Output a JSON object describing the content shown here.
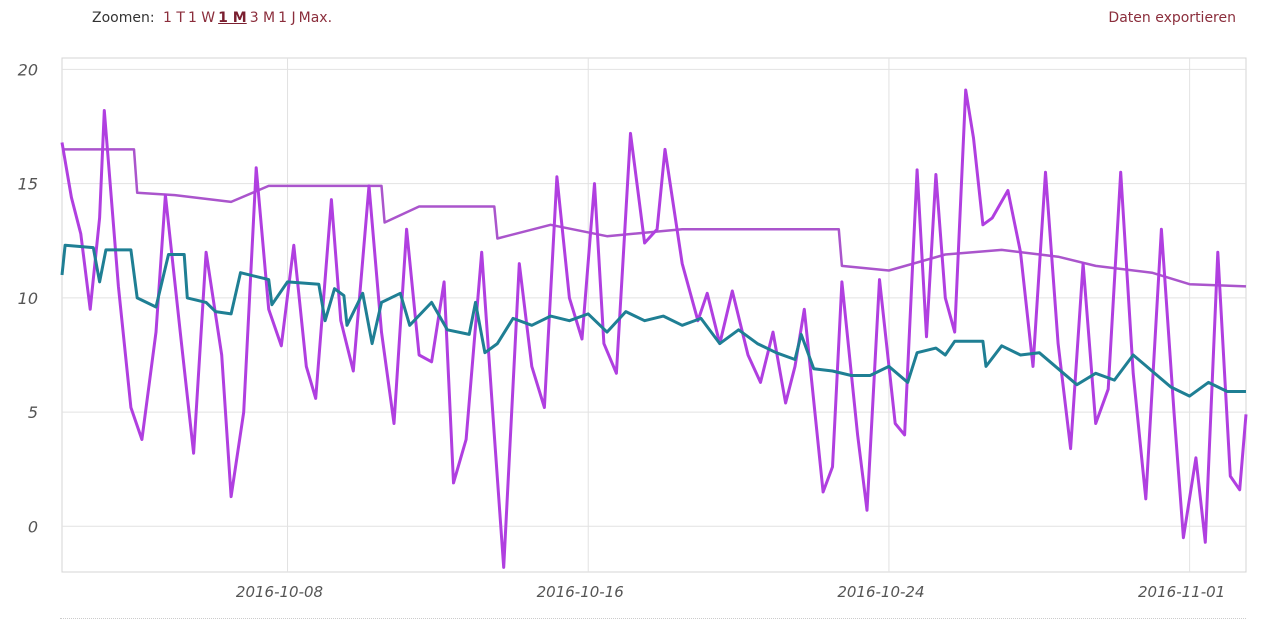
{
  "toolbar": {
    "zoom_label": "Zoomen:",
    "zoom_options": [
      {
        "label": "1 T",
        "active": false
      },
      {
        "label": "1 W",
        "active": false
      },
      {
        "label": "1 M",
        "active": true
      },
      {
        "label": "3 M",
        "active": false
      },
      {
        "label": "1 J",
        "active": false
      },
      {
        "label": "Max.",
        "active": false
      }
    ],
    "export_label": "Daten exportieren"
  },
  "chart_data": {
    "type": "line",
    "ylim": [
      -2,
      20.5
    ],
    "yticks": [
      0,
      5,
      10,
      15,
      20
    ],
    "xlim": [
      "2016-10-02",
      "2016-11-02T12:00"
    ],
    "xticks": [
      "2016-10-08",
      "2016-10-16",
      "2016-10-24",
      "2016-11-01"
    ],
    "grid": true,
    "colors": {
      "series1": "#b03fe0",
      "series2": "#aa55cc",
      "series3": "#1f7f94"
    },
    "series": [
      {
        "points": [
          [
            "2016-10-02T00:00",
            16.8
          ],
          [
            "2016-10-02T06:00",
            14.4
          ],
          [
            "2016-10-02T12:00",
            12.8
          ],
          [
            "2016-10-02T18:00",
            9.5
          ],
          [
            "2016-10-03T00:00",
            13.5
          ],
          [
            "2016-10-03T03:00",
            18.2
          ],
          [
            "2016-10-03T12:00",
            10.5
          ],
          [
            "2016-10-03T20:00",
            5.2
          ],
          [
            "2016-10-04T03:00",
            3.8
          ],
          [
            "2016-10-04T12:00",
            8.5
          ],
          [
            "2016-10-04T18:00",
            14.5
          ],
          [
            "2016-10-05T04:00",
            8.2
          ],
          [
            "2016-10-05T12:00",
            3.2
          ],
          [
            "2016-10-05T20:00",
            12.0
          ],
          [
            "2016-10-06T06:00",
            7.5
          ],
          [
            "2016-10-06T12:00",
            1.3
          ],
          [
            "2016-10-06T20:00",
            5.0
          ],
          [
            "2016-10-07T04:00",
            15.7
          ],
          [
            "2016-10-07T12:00",
            9.5
          ],
          [
            "2016-10-07T20:00",
            7.9
          ],
          [
            "2016-10-08T04:00",
            12.3
          ],
          [
            "2016-10-08T12:00",
            7.0
          ],
          [
            "2016-10-08T18:00",
            5.6
          ],
          [
            "2016-10-09T04:00",
            14.3
          ],
          [
            "2016-10-09T10:00",
            9.0
          ],
          [
            "2016-10-09T18:00",
            6.8
          ],
          [
            "2016-10-10T04:00",
            14.9
          ],
          [
            "2016-10-10T12:00",
            8.5
          ],
          [
            "2016-10-10T20:00",
            4.5
          ],
          [
            "2016-10-11T04:00",
            13.0
          ],
          [
            "2016-10-11T12:00",
            7.5
          ],
          [
            "2016-10-11T20:00",
            7.2
          ],
          [
            "2016-10-12T04:00",
            10.7
          ],
          [
            "2016-10-12T10:00",
            1.9
          ],
          [
            "2016-10-12T18:00",
            3.8
          ],
          [
            "2016-10-13T04:00",
            12.0
          ],
          [
            "2016-10-13T12:00",
            4.0
          ],
          [
            "2016-10-13T18:00",
            -1.8
          ],
          [
            "2016-10-14T04:00",
            11.5
          ],
          [
            "2016-10-14T12:00",
            7.0
          ],
          [
            "2016-10-14T20:00",
            5.2
          ],
          [
            "2016-10-15T04:00",
            15.3
          ],
          [
            "2016-10-15T12:00",
            10.0
          ],
          [
            "2016-10-15T20:00",
            8.2
          ],
          [
            "2016-10-16T04:00",
            15.0
          ],
          [
            "2016-10-16T10:00",
            8.0
          ],
          [
            "2016-10-16T18:00",
            6.7
          ],
          [
            "2016-10-17T03:00",
            17.2
          ],
          [
            "2016-10-17T12:00",
            12.4
          ],
          [
            "2016-10-17T20:00",
            13.0
          ],
          [
            "2016-10-18T01:00",
            16.5
          ],
          [
            "2016-10-18T12:00",
            11.5
          ],
          [
            "2016-10-18T22:00",
            9.0
          ],
          [
            "2016-10-19T04:00",
            10.2
          ],
          [
            "2016-10-19T12:00",
            8.0
          ],
          [
            "2016-10-19T20:00",
            10.3
          ],
          [
            "2016-10-20T06:00",
            7.5
          ],
          [
            "2016-10-20T14:00",
            6.3
          ],
          [
            "2016-10-20T22:00",
            8.5
          ],
          [
            "2016-10-21T06:00",
            5.4
          ],
          [
            "2016-10-21T12:00",
            7.0
          ],
          [
            "2016-10-21T18:00",
            9.5
          ],
          [
            "2016-10-22T06:00",
            1.5
          ],
          [
            "2016-10-22T12:00",
            2.6
          ],
          [
            "2016-10-22T18:00",
            10.7
          ],
          [
            "2016-10-23T04:00",
            4.0
          ],
          [
            "2016-10-23T10:00",
            0.7
          ],
          [
            "2016-10-23T18:00",
            10.8
          ],
          [
            "2016-10-24T04:00",
            4.5
          ],
          [
            "2016-10-24T10:00",
            4.0
          ],
          [
            "2016-10-24T18:00",
            15.6
          ],
          [
            "2016-10-25T00:00",
            8.3
          ],
          [
            "2016-10-25T06:00",
            15.4
          ],
          [
            "2016-10-25T12:00",
            10.0
          ],
          [
            "2016-10-25T18:00",
            8.5
          ],
          [
            "2016-10-26T01:00",
            19.1
          ],
          [
            "2016-10-26T06:00",
            17.0
          ],
          [
            "2016-10-26T12:00",
            13.2
          ],
          [
            "2016-10-26T18:00",
            13.5
          ],
          [
            "2016-10-27T04:00",
            14.7
          ],
          [
            "2016-10-27T12:00",
            12.0
          ],
          [
            "2016-10-27T20:00",
            7.0
          ],
          [
            "2016-10-28T04:00",
            15.5
          ],
          [
            "2016-10-28T12:00",
            8.0
          ],
          [
            "2016-10-28T20:00",
            3.4
          ],
          [
            "2016-10-29T04:00",
            11.5
          ],
          [
            "2016-10-29T12:00",
            4.5
          ],
          [
            "2016-10-29T20:00",
            6.0
          ],
          [
            "2016-10-30T04:00",
            15.5
          ],
          [
            "2016-10-30T12:00",
            6.7
          ],
          [
            "2016-10-30T20:00",
            1.2
          ],
          [
            "2016-10-31T06:00",
            13.0
          ],
          [
            "2016-10-31T14:00",
            5.0
          ],
          [
            "2016-10-31T20:00",
            -0.5
          ],
          [
            "2016-11-01T04:00",
            3.0
          ],
          [
            "2016-11-01T10:00",
            -0.7
          ],
          [
            "2016-11-01T18:00",
            12.0
          ],
          [
            "2016-11-02T02:00",
            2.2
          ],
          [
            "2016-11-02T08:00",
            1.6
          ],
          [
            "2016-11-02T12:00",
            4.9
          ]
        ]
      },
      {
        "points": [
          [
            "2016-10-02T00:00",
            16.5
          ],
          [
            "2016-10-03T22:00",
            16.5
          ],
          [
            "2016-10-04T00:00",
            14.6
          ],
          [
            "2016-10-05T00:00",
            14.5
          ],
          [
            "2016-10-06T12:00",
            14.2
          ],
          [
            "2016-10-07T12:00",
            14.9
          ],
          [
            "2016-10-09T12:00",
            14.9
          ],
          [
            "2016-10-10T12:00",
            14.9
          ],
          [
            "2016-10-10T14:00",
            13.3
          ],
          [
            "2016-10-11T12:00",
            14.0
          ],
          [
            "2016-10-13T12:00",
            14.0
          ],
          [
            "2016-10-13T14:00",
            12.6
          ],
          [
            "2016-10-15T00:00",
            13.2
          ],
          [
            "2016-10-16T12:00",
            12.7
          ],
          [
            "2016-10-18T12:00",
            13.0
          ],
          [
            "2016-10-20T00:00",
            13.0
          ],
          [
            "2016-10-21T12:00",
            13.0
          ],
          [
            "2016-10-22T16:00",
            13.0
          ],
          [
            "2016-10-22T18:00",
            11.4
          ],
          [
            "2016-10-24T00:00",
            11.2
          ],
          [
            "2016-10-25T12:00",
            11.9
          ],
          [
            "2016-10-27T00:00",
            12.1
          ],
          [
            "2016-10-28T12:00",
            11.8
          ],
          [
            "2016-10-29T12:00",
            11.4
          ],
          [
            "2016-10-31T00:00",
            11.1
          ],
          [
            "2016-11-01T00:00",
            10.6
          ],
          [
            "2016-11-02T12:00",
            10.5
          ]
        ]
      },
      {
        "points": [
          [
            "2016-10-02T00:00",
            11.0
          ],
          [
            "2016-10-02T02:00",
            12.3
          ],
          [
            "2016-10-02T20:00",
            12.2
          ],
          [
            "2016-10-03T00:00",
            10.7
          ],
          [
            "2016-10-03T04:00",
            12.1
          ],
          [
            "2016-10-03T20:00",
            12.1
          ],
          [
            "2016-10-04T00:00",
            10.0
          ],
          [
            "2016-10-04T12:00",
            9.6
          ],
          [
            "2016-10-04T20:00",
            11.9
          ],
          [
            "2016-10-05T06:00",
            11.9
          ],
          [
            "2016-10-05T08:00",
            10.0
          ],
          [
            "2016-10-05T20:00",
            9.8
          ],
          [
            "2016-10-06T02:00",
            9.4
          ],
          [
            "2016-10-06T12:00",
            9.3
          ],
          [
            "2016-10-06T18:00",
            11.1
          ],
          [
            "2016-10-07T12:00",
            10.8
          ],
          [
            "2016-10-07T14:00",
            9.7
          ],
          [
            "2016-10-08T00:00",
            10.7
          ],
          [
            "2016-10-08T20:00",
            10.6
          ],
          [
            "2016-10-09T00:00",
            9.0
          ],
          [
            "2016-10-09T06:00",
            10.4
          ],
          [
            "2016-10-09T12:00",
            10.1
          ],
          [
            "2016-10-09T14:00",
            8.8
          ],
          [
            "2016-10-10T00:00",
            10.2
          ],
          [
            "2016-10-10T06:00",
            8.0
          ],
          [
            "2016-10-10T12:00",
            9.8
          ],
          [
            "2016-10-11T00:00",
            10.2
          ],
          [
            "2016-10-11T06:00",
            8.8
          ],
          [
            "2016-10-11T20:00",
            9.8
          ],
          [
            "2016-10-12T06:00",
            8.6
          ],
          [
            "2016-10-12T20:00",
            8.4
          ],
          [
            "2016-10-13T00:00",
            9.8
          ],
          [
            "2016-10-13T06:00",
            7.6
          ],
          [
            "2016-10-13T14:00",
            8.0
          ],
          [
            "2016-10-14T00:00",
            9.1
          ],
          [
            "2016-10-14T12:00",
            8.8
          ],
          [
            "2016-10-15T00:00",
            9.2
          ],
          [
            "2016-10-15T12:00",
            9.0
          ],
          [
            "2016-10-16T00:00",
            9.3
          ],
          [
            "2016-10-16T12:00",
            8.5
          ],
          [
            "2016-10-17T00:00",
            9.4
          ],
          [
            "2016-10-17T12:00",
            9.0
          ],
          [
            "2016-10-18T00:00",
            9.2
          ],
          [
            "2016-10-18T12:00",
            8.8
          ],
          [
            "2016-10-19T00:00",
            9.1
          ],
          [
            "2016-10-19T12:00",
            8.0
          ],
          [
            "2016-10-20T00:00",
            8.6
          ],
          [
            "2016-10-20T12:00",
            8.0
          ],
          [
            "2016-10-21T00:00",
            7.6
          ],
          [
            "2016-10-21T12:00",
            7.3
          ],
          [
            "2016-10-21T16:00",
            8.4
          ],
          [
            "2016-10-22T00:00",
            6.9
          ],
          [
            "2016-10-22T12:00",
            6.8
          ],
          [
            "2016-10-23T00:00",
            6.6
          ],
          [
            "2016-10-23T12:00",
            6.6
          ],
          [
            "2016-10-24T00:00",
            7.0
          ],
          [
            "2016-10-24T12:00",
            6.3
          ],
          [
            "2016-10-24T18:00",
            7.6
          ],
          [
            "2016-10-25T06:00",
            7.8
          ],
          [
            "2016-10-25T12:00",
            7.5
          ],
          [
            "2016-10-25T18:00",
            8.1
          ],
          [
            "2016-10-26T12:00",
            8.1
          ],
          [
            "2016-10-26T14:00",
            7.0
          ],
          [
            "2016-10-27T00:00",
            7.9
          ],
          [
            "2016-10-27T12:00",
            7.5
          ],
          [
            "2016-10-28T00:00",
            7.6
          ],
          [
            "2016-10-28T12:00",
            6.9
          ],
          [
            "2016-10-29T00:00",
            6.2
          ],
          [
            "2016-10-29T12:00",
            6.7
          ],
          [
            "2016-10-30T00:00",
            6.4
          ],
          [
            "2016-10-30T12:00",
            7.5
          ],
          [
            "2016-10-31T00:00",
            6.8
          ],
          [
            "2016-10-31T12:00",
            6.1
          ],
          [
            "2016-11-01T00:00",
            5.7
          ],
          [
            "2016-11-01T12:00",
            6.3
          ],
          [
            "2016-11-02T00:00",
            5.9
          ],
          [
            "2016-11-02T12:00",
            5.9
          ]
        ]
      }
    ]
  }
}
